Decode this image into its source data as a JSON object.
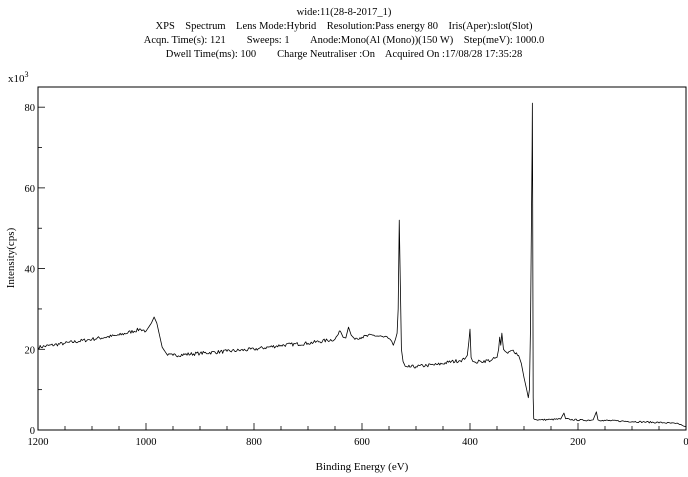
{
  "header_lines": [
    "wide:11(28-8-2017_1)",
    "XPS    Spectrum    Lens Mode:Hybrid    Resolution:Pass energy 80    Iris(Aper):slot(Slot)",
    "Acqn. Time(s): 121        Sweeps: 1        Anode:Mono(Al (Mono))(150 W)    Step(meV): 1000.0",
    "Dwell Time(ms): 100        Charge Neutraliser :On    Acquired On :17/08/28 17:35:28"
  ],
  "chart_data": {
    "type": "line",
    "title": "wide:11(28-8-2017_1)",
    "xlabel": "Binding Energy (eV)",
    "ylabel": "Intensity(cps)",
    "y_multiplier_label": "x10",
    "y_multiplier_exponent": "3",
    "xlim": [
      1200,
      0
    ],
    "ylim": [
      0,
      85
    ],
    "x_reversed": true,
    "x_ticks": [
      1200,
      1000,
      800,
      600,
      400,
      200,
      0
    ],
    "x_tick_labels": [
      "1200",
      "1000",
      "800",
      "600",
      "400",
      "200",
      "0"
    ],
    "y_ticks": [
      0,
      20,
      40,
      60,
      80
    ],
    "y_tick_labels": [
      "0",
      "20",
      "40",
      "60",
      "80"
    ],
    "grid": false,
    "color": "#000000",
    "series": [
      {
        "x": [
          1200,
          1150,
          1100,
          1050,
          1010,
          1000,
          995,
          990,
          985,
          980,
          975,
          970,
          965,
          960,
          950,
          900,
          850,
          800,
          750,
          700,
          650,
          640,
          635,
          630,
          625,
          620,
          615,
          600,
          580,
          560,
          552,
          548,
          545,
          542,
          538,
          535,
          533,
          531,
          529,
          527,
          524,
          520,
          515,
          500,
          480,
          460,
          440,
          420,
          410,
          405,
          402,
          400,
          398,
          395,
          390,
          380,
          360,
          350,
          347,
          345,
          343,
          341,
          338,
          335,
          330,
          320,
          310,
          305,
          300,
          295,
          292,
          290,
          288,
          286,
          285,
          284.5,
          284,
          283,
          282,
          280,
          270,
          250,
          232,
          229,
          226,
          223,
          215,
          190,
          172,
          169,
          166,
          163,
          155,
          120,
          80,
          40,
          20,
          10,
          5,
          0
        ],
        "y": [
          20.5,
          21.5,
          22.5,
          23.5,
          25.0,
          24.5,
          25.5,
          26.5,
          28.0,
          26.5,
          23.5,
          20.5,
          19.5,
          18.5,
          18.5,
          19.0,
          19.5,
          20.0,
          21.0,
          21.5,
          22.5,
          24.5,
          23.0,
          22.8,
          25.5,
          23.5,
          22.8,
          23.0,
          23.5,
          23.0,
          22.8,
          22.5,
          22.0,
          21.0,
          22.5,
          24.0,
          30.0,
          52.0,
          36.0,
          20.0,
          17.0,
          15.8,
          15.6,
          15.7,
          16.0,
          16.2,
          16.8,
          17.2,
          17.5,
          18.5,
          22.0,
          25.0,
          18.0,
          17.0,
          16.8,
          17.0,
          17.3,
          18.0,
          20.0,
          23.0,
          21.0,
          24.0,
          20.0,
          19.5,
          19.0,
          19.8,
          18.5,
          16.5,
          13.0,
          10.0,
          8.0,
          10.0,
          25.0,
          55.0,
          70.0,
          81.0,
          60.0,
          8.0,
          2.8,
          2.6,
          2.5,
          2.6,
          2.7,
          3.5,
          4.2,
          2.8,
          2.6,
          2.4,
          2.5,
          3.5,
          4.5,
          2.5,
          2.4,
          2.2,
          2.0,
          1.8,
          1.6,
          1.4,
          1.0,
          0.8
        ]
      }
    ]
  }
}
